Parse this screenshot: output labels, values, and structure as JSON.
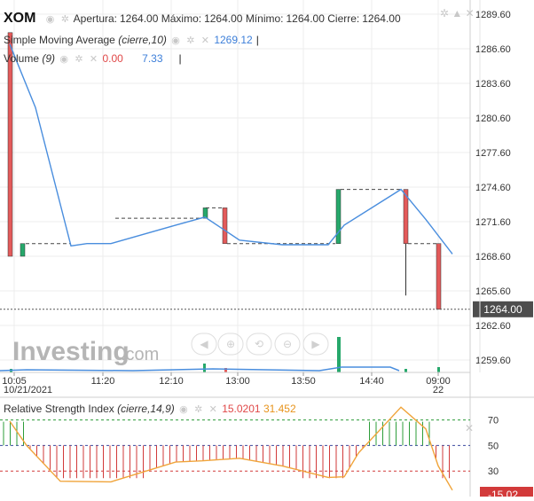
{
  "header": {
    "symbol": "XOM",
    "open_label": "Apertura:",
    "open": "1264.00",
    "high_label": "Máximo:",
    "high": "1264.00",
    "low_label": "Mínimo:",
    "low": "1264.00",
    "close_label": "Cierre:",
    "close": "1264.00"
  },
  "sma_legend": {
    "name": "Simple Moving Average",
    "params": "(cierre,10)",
    "value": "1269.12"
  },
  "volume_legend": {
    "name": "Volume",
    "params": "(9)",
    "value1": "0.00",
    "value2": "7.33"
  },
  "rsi_legend": {
    "name": "Relative Strength Index",
    "params": "(cierre,14,9)",
    "value1": "15.0201",
    "value2": "31.452"
  },
  "watermark": {
    "brand": "Investing",
    "suffix": ".com"
  },
  "toolbar": {
    "icons": [
      "arrow-left-icon",
      "zoom-in-icon",
      "zoom-reset-icon",
      "zoom-out-icon",
      "arrow-right-icon"
    ]
  },
  "price_axis": {
    "ticks": [
      "1289.60",
      "1286.60",
      "1283.60",
      "1280.60",
      "1277.60",
      "1274.60",
      "1271.60",
      "1268.60",
      "1265.60",
      "1262.60",
      "1259.60"
    ],
    "last_price": "1264.00"
  },
  "time_axis": {
    "ticks": [
      "10:05",
      "11:20",
      "12:10",
      "13:00",
      "13:50",
      "14:40",
      "09:00"
    ],
    "date_left": "10/21/2021",
    "date_right": "22"
  },
  "rsi_axis": {
    "ticks": [
      "70",
      "50",
      "30"
    ],
    "current": "15.02"
  },
  "colors": {
    "up": "#26a86b",
    "down": "#e35a5a",
    "sma": "#4a8ede",
    "rsi_line": "#f0a43a",
    "rsi_level": "#2d9d3a",
    "rsi_mid": "#3a4aa0",
    "rsi_low": "#d23a3a",
    "last_price_bg": "#4d4d4d"
  },
  "chart_data": [
    {
      "type": "candlestick",
      "title": "XOM",
      "ylim": [
        1258.5,
        1290.4
      ],
      "categories": [
        "10:05",
        "10:10",
        "11:20",
        "12:10",
        "12:45",
        "12:50",
        "13:00",
        "13:50",
        "14:30",
        "14:40",
        "15:00",
        "09:00",
        "09:10"
      ],
      "candles": [
        {
          "time": "10:05",
          "open": 1288.0,
          "close": 1268.6,
          "high": 1288.0,
          "low": 1268.6
        },
        {
          "time": "10:10",
          "open": 1268.6,
          "close": 1269.7,
          "high": 1269.7,
          "low": 1268.6
        },
        {
          "time": "12:45",
          "open": 1271.9,
          "close": 1272.8,
          "high": 1272.8,
          "low": 1271.9
        },
        {
          "time": "12:50",
          "open": 1272.8,
          "close": 1269.7,
          "high": 1272.8,
          "low": 1269.7
        },
        {
          "time": "14:30",
          "open": 1269.7,
          "close": 1274.4,
          "high": 1274.4,
          "low": 1269.7
        },
        {
          "time": "14:40",
          "open": 1274.4,
          "close": 1269.7,
          "high": 1274.4,
          "low": 1265.2
        },
        {
          "time": "09:00",
          "open": 1269.7,
          "close": 1264.0,
          "high": 1269.7,
          "low": 1264.0
        }
      ],
      "series": [
        {
          "name": "Simple Moving Average (cierre,10)",
          "points": [
            {
              "x": "10:05",
              "y": 1287.0
            },
            {
              "x": "10:15",
              "y": 1281.5
            },
            {
              "x": "10:35",
              "y": 1269.5
            },
            {
              "x": "10:50",
              "y": 1269.7
            },
            {
              "x": "11:20",
              "y": 1269.7
            },
            {
              "x": "12:10",
              "y": 1271.3
            },
            {
              "x": "12:45",
              "y": 1272.0
            },
            {
              "x": "13:00",
              "y": 1270.0
            },
            {
              "x": "13:20",
              "y": 1269.6
            },
            {
              "x": "13:50",
              "y": 1269.6
            },
            {
              "x": "14:10",
              "y": 1271.3
            },
            {
              "x": "14:40",
              "y": 1274.4
            },
            {
              "x": "15:00",
              "y": 1271.8
            },
            {
              "x": "09:10",
              "y": 1268.8
            }
          ]
        }
      ],
      "last_price": 1264.0
    },
    {
      "type": "bar",
      "title": "Volume (9)",
      "values_visible": [
        "0.00",
        "7.33"
      ]
    },
    {
      "type": "line",
      "title": "Relative Strength Index (cierre,14,9)",
      "levels": [
        70,
        50,
        30
      ],
      "ylim": [
        10,
        85
      ],
      "series": [
        {
          "name": "RSI",
          "points": [
            {
              "x": "10:05",
              "y": 69
            },
            {
              "x": "10:20",
              "y": 50
            },
            {
              "x": "11:00",
              "y": 22
            },
            {
              "x": "11:20",
              "y": 21.5
            },
            {
              "x": "12:10",
              "y": 37
            },
            {
              "x": "12:35",
              "y": 38
            },
            {
              "x": "13:00",
              "y": 40
            },
            {
              "x": "13:20",
              "y": 34
            },
            {
              "x": "13:50",
              "y": 25
            },
            {
              "x": "14:10",
              "y": 25.5
            },
            {
              "x": "14:25",
              "y": 44
            },
            {
              "x": "14:40",
              "y": 80
            },
            {
              "x": "15:00",
              "y": 63
            },
            {
              "x": "09:00",
              "y": 34
            },
            {
              "x": "09:10",
              "y": 15
            }
          ]
        }
      ],
      "current": 15.0201,
      "signal": 31.452
    }
  ]
}
